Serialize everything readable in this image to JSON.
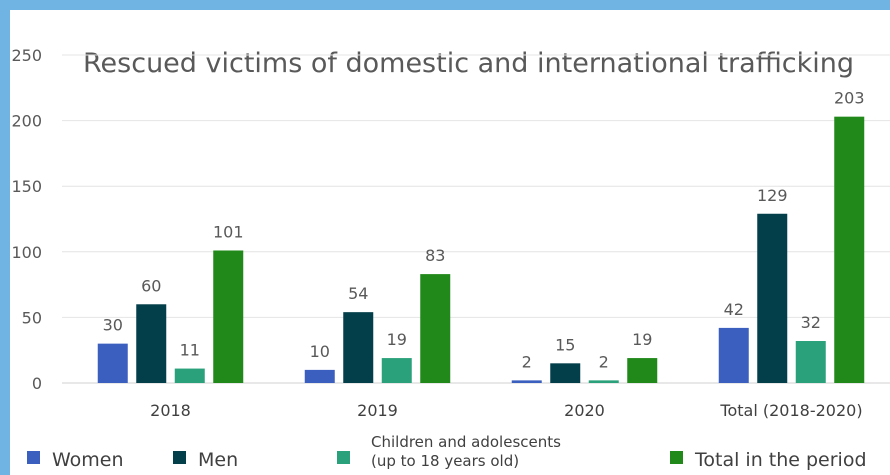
{
  "chart_data": {
    "type": "bar",
    "title": "Rescued victims of domestic and international trafficking",
    "categories": [
      "2018",
      "2019",
      "2020",
      "Total (2018-2020)"
    ],
    "series": [
      {
        "name": "Women",
        "values": [
          30,
          10,
          2,
          42
        ],
        "color": "#3a5fbf"
      },
      {
        "name": "Men",
        "values": [
          60,
          54,
          15,
          129
        ],
        "color": "#033f4a"
      },
      {
        "name": "Children and adolescents (up to 18 years old)",
        "name_lines": [
          "Children and adolescents",
          "(up to 18 years old)"
        ],
        "values": [
          11,
          19,
          2,
          32
        ],
        "color": "#2aa17a"
      },
      {
        "name": "Total in the period",
        "values": [
          101,
          83,
          19,
          203
        ],
        "color": "#21891a"
      }
    ],
    "yticks": [
      0,
      50,
      100,
      150,
      200,
      250
    ],
    "ylim": [
      0,
      250
    ],
    "grid": true,
    "legend": "bottom"
  }
}
